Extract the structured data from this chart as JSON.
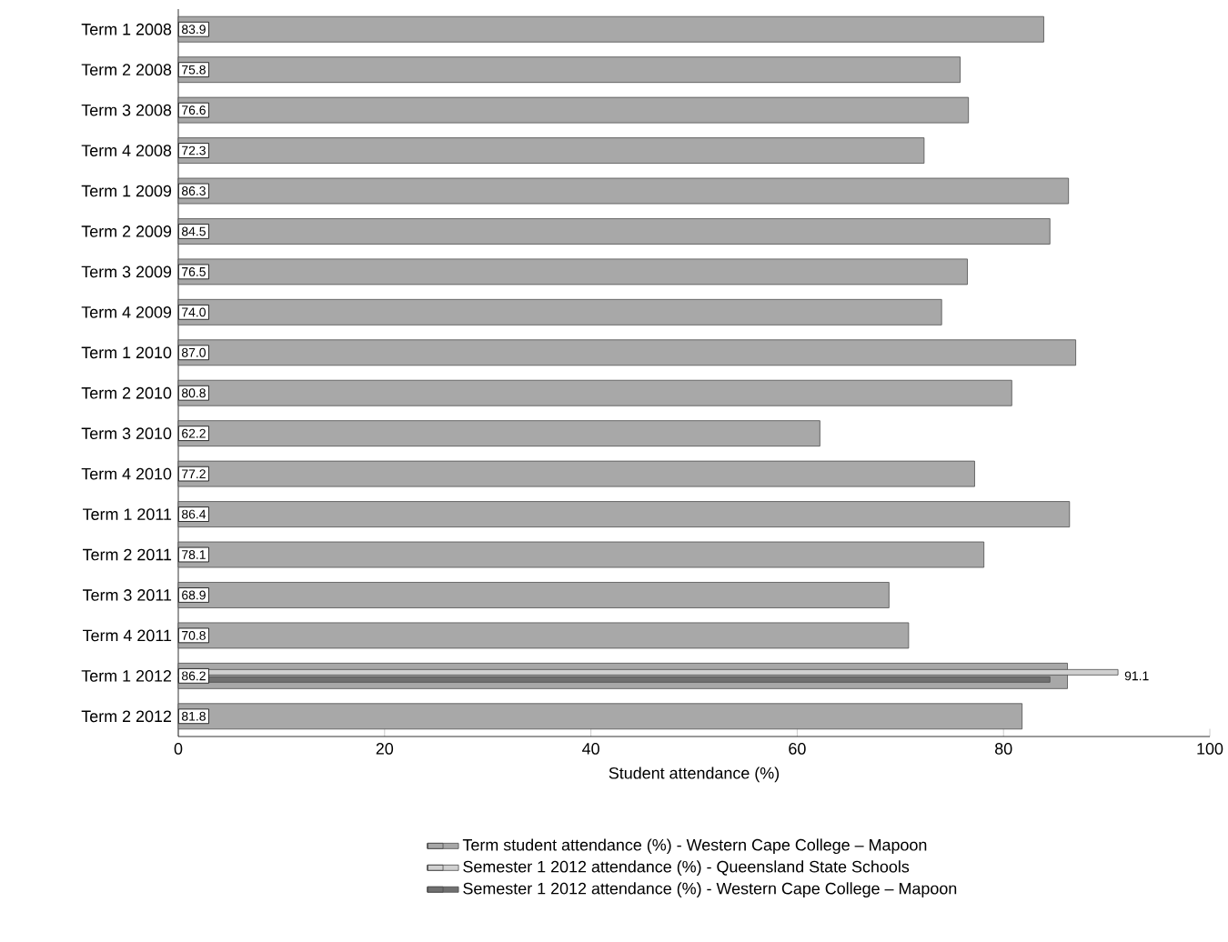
{
  "chart_data": {
    "type": "bar",
    "orientation": "horizontal",
    "categories": [
      "Term 1 2008",
      "Term 2 2008",
      "Term 3 2008",
      "Term 4 2008",
      "Term 1 2009",
      "Term 2 2009",
      "Term 3 2009",
      "Term 4 2009",
      "Term 1 2010",
      "Term 2 2010",
      "Term 3 2010",
      "Term 4 2010",
      "Term 1 2011",
      "Term 2 2011",
      "Term 3 2011",
      "Term 4 2011",
      "Term 1 2012",
      "Term 2 2012"
    ],
    "series": [
      {
        "name": "Term student attendance (%) - Western Cape College – Mapoon",
        "color": "#a8a8a8",
        "values": [
          83.9,
          75.8,
          76.6,
          72.3,
          86.3,
          84.5,
          76.5,
          74.0,
          87.0,
          80.8,
          62.2,
          77.2,
          86.4,
          78.1,
          68.9,
          70.8,
          86.2,
          81.8
        ],
        "value_labels": [
          "83.9",
          "75.8",
          "76.6",
          "72.3",
          "86.3",
          "84.5",
          "76.5",
          "74.0",
          "87.0",
          "80.8",
          "62.2",
          "77.2",
          "86.4",
          "78.1",
          "68.9",
          "70.8",
          "86.2",
          "81.8"
        ]
      },
      {
        "name": "Semester 1 2012 attendance (%) - Queensland State Schools",
        "color": "#d0d0d0",
        "values": [
          null,
          null,
          null,
          null,
          null,
          null,
          null,
          null,
          null,
          null,
          null,
          null,
          null,
          null,
          null,
          null,
          91.1,
          null
        ],
        "value_labels": [
          null,
          null,
          null,
          null,
          null,
          null,
          null,
          null,
          null,
          null,
          null,
          null,
          null,
          null,
          null,
          null,
          "91.1",
          null
        ]
      },
      {
        "name": "Semester 1 2012 attendance (%) - Western Cape College – Mapoon",
        "color": "#707070",
        "values": [
          null,
          null,
          null,
          null,
          null,
          null,
          null,
          null,
          null,
          null,
          null,
          null,
          null,
          null,
          null,
          null,
          84.5,
          null
        ]
      }
    ],
    "xlim": [
      0,
      100
    ],
    "xticks": [
      0,
      20,
      40,
      60,
      80,
      100
    ],
    "xlabel": "Student attendance (%)",
    "legend": "bottom"
  }
}
